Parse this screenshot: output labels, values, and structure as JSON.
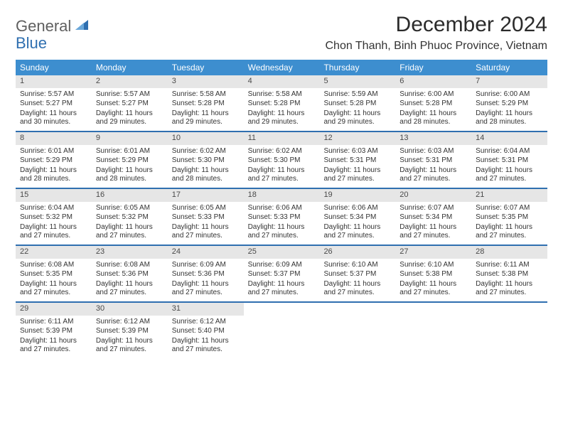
{
  "logo": {
    "text1": "General",
    "text2": "Blue"
  },
  "title": "December 2024",
  "location": "Chon Thanh, Binh Phuoc Province, Vietnam",
  "weekday_header_bg": "#3d8ecf",
  "weekday_header_color": "#ffffff",
  "row_divider_color": "#2f6fb0",
  "daynum_bg": "#e6e6e6",
  "weekdays": [
    "Sunday",
    "Monday",
    "Tuesday",
    "Wednesday",
    "Thursday",
    "Friday",
    "Saturday"
  ],
  "weeks": [
    [
      {
        "n": "1",
        "sr": "5:57 AM",
        "ss": "5:27 PM",
        "dl": "11 hours and 30 minutes."
      },
      {
        "n": "2",
        "sr": "5:57 AM",
        "ss": "5:27 PM",
        "dl": "11 hours and 29 minutes."
      },
      {
        "n": "3",
        "sr": "5:58 AM",
        "ss": "5:28 PM",
        "dl": "11 hours and 29 minutes."
      },
      {
        "n": "4",
        "sr": "5:58 AM",
        "ss": "5:28 PM",
        "dl": "11 hours and 29 minutes."
      },
      {
        "n": "5",
        "sr": "5:59 AM",
        "ss": "5:28 PM",
        "dl": "11 hours and 29 minutes."
      },
      {
        "n": "6",
        "sr": "6:00 AM",
        "ss": "5:28 PM",
        "dl": "11 hours and 28 minutes."
      },
      {
        "n": "7",
        "sr": "6:00 AM",
        "ss": "5:29 PM",
        "dl": "11 hours and 28 minutes."
      }
    ],
    [
      {
        "n": "8",
        "sr": "6:01 AM",
        "ss": "5:29 PM",
        "dl": "11 hours and 28 minutes."
      },
      {
        "n": "9",
        "sr": "6:01 AM",
        "ss": "5:29 PM",
        "dl": "11 hours and 28 minutes."
      },
      {
        "n": "10",
        "sr": "6:02 AM",
        "ss": "5:30 PM",
        "dl": "11 hours and 28 minutes."
      },
      {
        "n": "11",
        "sr": "6:02 AM",
        "ss": "5:30 PM",
        "dl": "11 hours and 27 minutes."
      },
      {
        "n": "12",
        "sr": "6:03 AM",
        "ss": "5:31 PM",
        "dl": "11 hours and 27 minutes."
      },
      {
        "n": "13",
        "sr": "6:03 AM",
        "ss": "5:31 PM",
        "dl": "11 hours and 27 minutes."
      },
      {
        "n": "14",
        "sr": "6:04 AM",
        "ss": "5:31 PM",
        "dl": "11 hours and 27 minutes."
      }
    ],
    [
      {
        "n": "15",
        "sr": "6:04 AM",
        "ss": "5:32 PM",
        "dl": "11 hours and 27 minutes."
      },
      {
        "n": "16",
        "sr": "6:05 AM",
        "ss": "5:32 PM",
        "dl": "11 hours and 27 minutes."
      },
      {
        "n": "17",
        "sr": "6:05 AM",
        "ss": "5:33 PM",
        "dl": "11 hours and 27 minutes."
      },
      {
        "n": "18",
        "sr": "6:06 AM",
        "ss": "5:33 PM",
        "dl": "11 hours and 27 minutes."
      },
      {
        "n": "19",
        "sr": "6:06 AM",
        "ss": "5:34 PM",
        "dl": "11 hours and 27 minutes."
      },
      {
        "n": "20",
        "sr": "6:07 AM",
        "ss": "5:34 PM",
        "dl": "11 hours and 27 minutes."
      },
      {
        "n": "21",
        "sr": "6:07 AM",
        "ss": "5:35 PM",
        "dl": "11 hours and 27 minutes."
      }
    ],
    [
      {
        "n": "22",
        "sr": "6:08 AM",
        "ss": "5:35 PM",
        "dl": "11 hours and 27 minutes."
      },
      {
        "n": "23",
        "sr": "6:08 AM",
        "ss": "5:36 PM",
        "dl": "11 hours and 27 minutes."
      },
      {
        "n": "24",
        "sr": "6:09 AM",
        "ss": "5:36 PM",
        "dl": "11 hours and 27 minutes."
      },
      {
        "n": "25",
        "sr": "6:09 AM",
        "ss": "5:37 PM",
        "dl": "11 hours and 27 minutes."
      },
      {
        "n": "26",
        "sr": "6:10 AM",
        "ss": "5:37 PM",
        "dl": "11 hours and 27 minutes."
      },
      {
        "n": "27",
        "sr": "6:10 AM",
        "ss": "5:38 PM",
        "dl": "11 hours and 27 minutes."
      },
      {
        "n": "28",
        "sr": "6:11 AM",
        "ss": "5:38 PM",
        "dl": "11 hours and 27 minutes."
      }
    ],
    [
      {
        "n": "29",
        "sr": "6:11 AM",
        "ss": "5:39 PM",
        "dl": "11 hours and 27 minutes."
      },
      {
        "n": "30",
        "sr": "6:12 AM",
        "ss": "5:39 PM",
        "dl": "11 hours and 27 minutes."
      },
      {
        "n": "31",
        "sr": "6:12 AM",
        "ss": "5:40 PM",
        "dl": "11 hours and 27 minutes."
      },
      null,
      null,
      null,
      null
    ]
  ],
  "labels": {
    "sunrise": "Sunrise:",
    "sunset": "Sunset:",
    "daylight": "Daylight:"
  }
}
